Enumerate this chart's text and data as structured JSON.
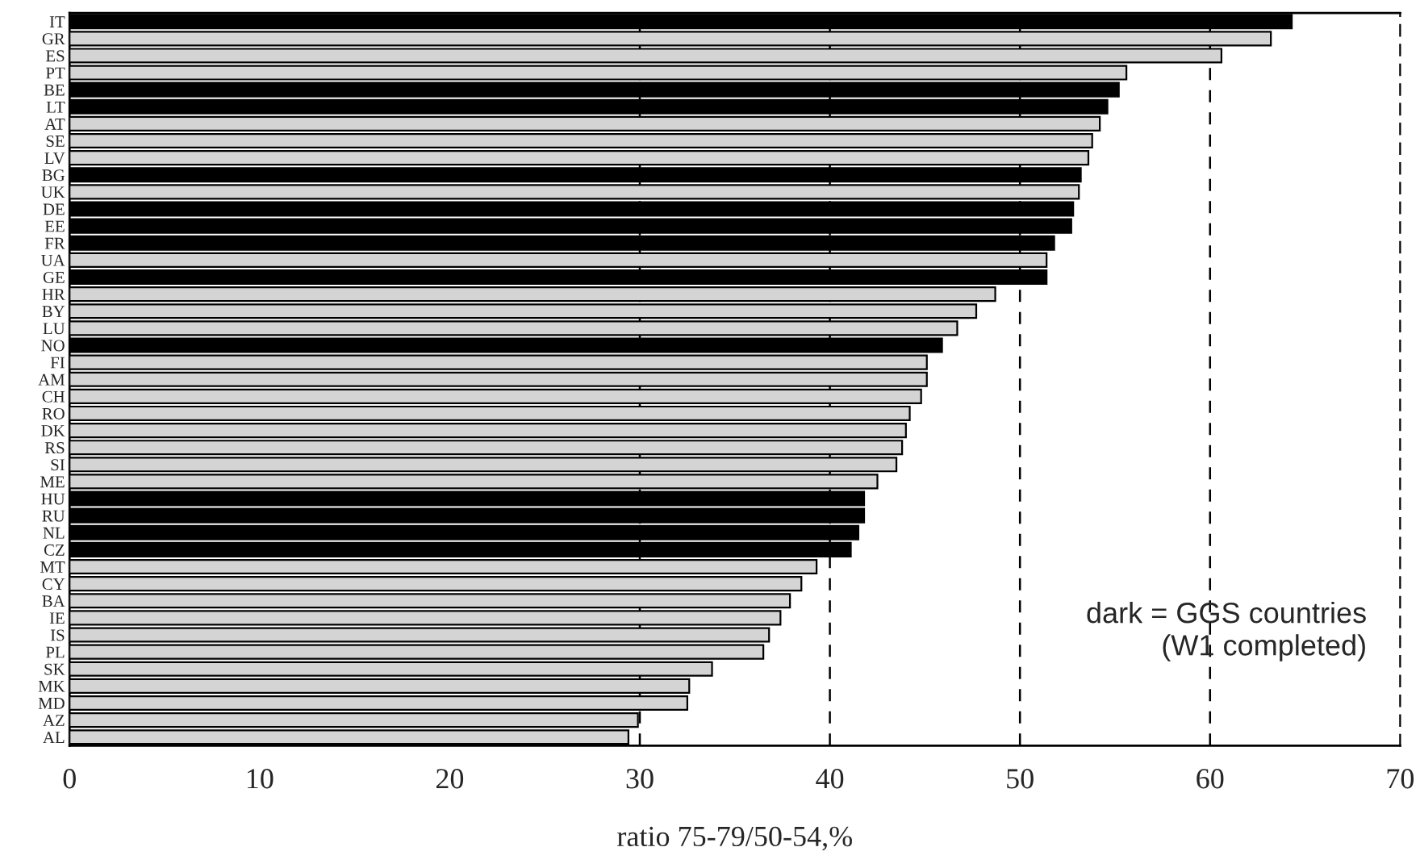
{
  "chart_data": {
    "type": "bar",
    "orientation": "horizontal",
    "xlabel": "ratio 75-79/50-54,%",
    "categories": [
      "IT",
      "GR",
      "ES",
      "PT",
      "BE",
      "LT",
      "AT",
      "SE",
      "LV",
      "BG",
      "UK",
      "DE",
      "EE",
      "FR",
      "UA",
      "GE",
      "HR",
      "BY",
      "LU",
      "NO",
      "FI",
      "AM",
      "CH",
      "RO",
      "DK",
      "RS",
      "SI",
      "ME",
      "HU",
      "RU",
      "NL",
      "CZ",
      "MT",
      "CY",
      "BA",
      "IE",
      "IS",
      "PL",
      "SK",
      "MK",
      "MD",
      "AZ",
      "AL"
    ],
    "values": [
      64.3,
      63.2,
      60.6,
      55.6,
      55.2,
      54.6,
      54.2,
      53.8,
      53.6,
      53.2,
      53.1,
      52.8,
      52.7,
      51.8,
      51.4,
      51.4,
      48.7,
      47.7,
      46.7,
      45.9,
      45.1,
      45.1,
      44.8,
      44.2,
      44.0,
      43.8,
      43.5,
      42.5,
      41.8,
      41.8,
      41.5,
      41.1,
      39.3,
      38.5,
      37.9,
      37.4,
      36.8,
      36.5,
      33.8,
      32.6,
      32.5,
      29.9,
      29.4
    ],
    "colors": [
      "#000000",
      "#d4d4d4",
      "#d4d4d4",
      "#d4d4d4",
      "#000000",
      "#000000",
      "#d4d4d4",
      "#d4d4d4",
      "#d4d4d4",
      "#000000",
      "#d4d4d4",
      "#000000",
      "#000000",
      "#000000",
      "#d4d4d4",
      "#000000",
      "#d4d4d4",
      "#d4d4d4",
      "#d4d4d4",
      "#000000",
      "#d4d4d4",
      "#d4d4d4",
      "#d4d4d4",
      "#d4d4d4",
      "#d4d4d4",
      "#d4d4d4",
      "#d4d4d4",
      "#d4d4d4",
      "#000000",
      "#000000",
      "#000000",
      "#000000",
      "#d4d4d4",
      "#d4d4d4",
      "#d4d4d4",
      "#d4d4d4",
      "#d4d4d4",
      "#d4d4d4",
      "#d4d4d4",
      "#d4d4d4",
      "#d4d4d4",
      "#d4d4d4",
      "#d4d4d4"
    ],
    "xlim": [
      0,
      70
    ],
    "xticks": [
      0,
      10,
      20,
      30,
      40,
      50,
      60,
      70
    ],
    "ref_lines": [
      {
        "axis": "x",
        "value": 30,
        "line_style": "dashed"
      },
      {
        "axis": "x",
        "value": 40,
        "line_style": "dashed"
      },
      {
        "axis": "x",
        "value": 50,
        "line_style": "dashed"
      },
      {
        "axis": "x",
        "value": 60,
        "line_style": "dashed"
      }
    ],
    "annotations": [
      "dark = GGS countries\n(W1 completed)"
    ],
    "grid": false,
    "legend": false
  }
}
